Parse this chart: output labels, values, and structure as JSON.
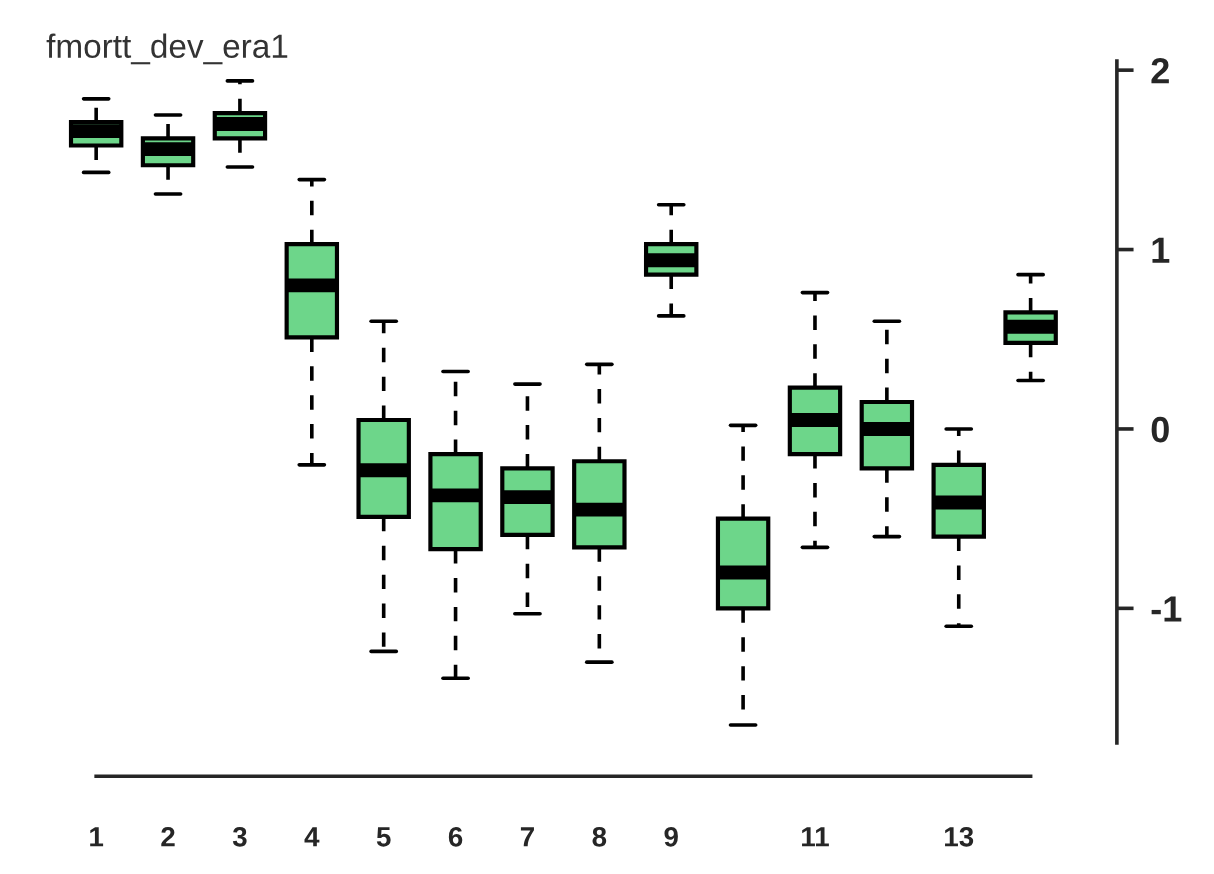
{
  "chart_data": {
    "type": "box",
    "title": "fmortt_dev_era1",
    "categories": [
      "1",
      "2",
      "3",
      "4",
      "5",
      "6",
      "7",
      "8",
      "9",
      null,
      "11",
      null,
      "13",
      null
    ],
    "series": [
      {
        "color": "#6dd68a",
        "boxes": [
          {
            "low": 1.43,
            "q1": 1.58,
            "median": 1.66,
            "q3": 1.71,
            "high": 1.84
          },
          {
            "low": 1.31,
            "q1": 1.47,
            "median": 1.56,
            "q3": 1.62,
            "high": 1.75
          },
          {
            "low": 1.46,
            "q1": 1.62,
            "median": 1.7,
            "q3": 1.76,
            "high": 1.94
          },
          {
            "low": -0.2,
            "q1": 0.51,
            "median": 0.8,
            "q3": 1.03,
            "high": 1.39
          },
          {
            "low": -1.24,
            "q1": -0.49,
            "median": -0.23,
            "q3": 0.05,
            "high": 0.6
          },
          {
            "low": -1.39,
            "q1": -0.67,
            "median": -0.37,
            "q3": -0.14,
            "high": 0.32
          },
          {
            "low": -1.03,
            "q1": -0.59,
            "median": -0.38,
            "q3": -0.22,
            "high": 0.25
          },
          {
            "low": -1.3,
            "q1": -0.66,
            "median": -0.45,
            "q3": -0.18,
            "high": 0.36
          },
          {
            "low": 0.63,
            "q1": 0.86,
            "median": 0.94,
            "q3": 1.03,
            "high": 1.25
          },
          {
            "low": -1.65,
            "q1": -1.0,
            "median": -0.8,
            "q3": -0.5,
            "high": 0.02
          },
          {
            "low": -0.66,
            "q1": -0.14,
            "median": 0.05,
            "q3": 0.23,
            "high": 0.76
          },
          {
            "low": -0.6,
            "q1": -0.22,
            "median": 0.0,
            "q3": 0.15,
            "high": 0.6
          },
          {
            "low": -1.1,
            "q1": -0.6,
            "median": -0.41,
            "q3": -0.2,
            "high": 0.0
          },
          {
            "low": 0.27,
            "q1": 0.48,
            "median": 0.57,
            "q3": 0.65,
            "high": 0.86
          }
        ]
      }
    ],
    "ylim": [
      -1.75,
      2.05
    ],
    "yticks": [
      -1,
      0,
      1,
      2
    ],
    "grid": false
  }
}
